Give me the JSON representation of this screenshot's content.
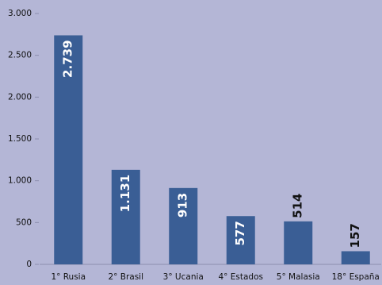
{
  "chart_data": {
    "type": "bar",
    "categories": [
      "1° Rusia",
      "2° Brasil",
      "3° Ucania",
      "4° Estados",
      "5° Malasia",
      "18° España"
    ],
    "values": [
      2739,
      1131,
      913,
      577,
      514,
      157
    ],
    "value_labels": [
      "2.739",
      "1.131",
      "913",
      "577",
      "514",
      "157"
    ],
    "color": "#3a5e95",
    "ylim": [
      0,
      3000
    ],
    "yticks": [
      0,
      {
        "value": 500,
        "label": "500"
      },
      {
        "value": 1000,
        "label": "1.000"
      },
      {
        "value": 1500,
        "label": "1.500"
      },
      {
        "value": 2000,
        "label": "2.000"
      },
      {
        "value": 2500,
        "label": "2.500"
      },
      {
        "value": 3000,
        "label": "3.000"
      }
    ],
    "grid": false
  }
}
